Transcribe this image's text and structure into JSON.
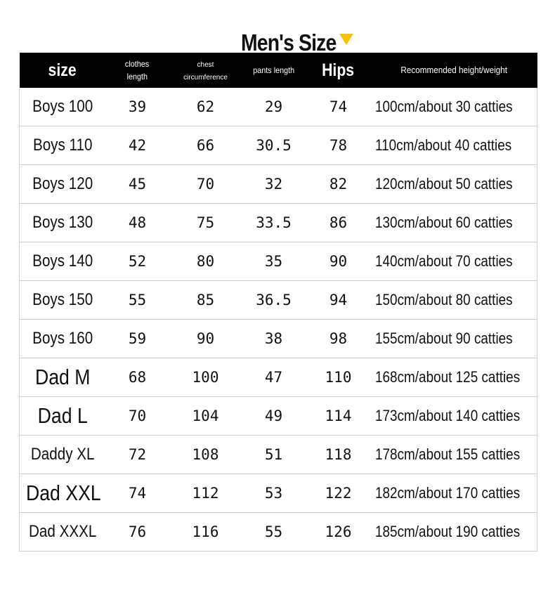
{
  "title": "Men's Size",
  "colors": {
    "header_bg": "#000000",
    "header_text": "#ffffff",
    "accent_arrow": "#f4c20d",
    "grid": "#cfcfcf"
  },
  "headers": {
    "size": "size",
    "clothes_length_1": "clothes",
    "clothes_length_2": "length",
    "chest_1": "chest",
    "chest_2": "circumference",
    "pants_length": "pants length",
    "hips": "Hips",
    "recommended": "Recommended height/weight"
  },
  "rows": [
    {
      "size": "Boys 100",
      "clothes_length": "39",
      "chest": "62",
      "pants_length": "29",
      "hips": "74",
      "recommended": "100cm/about 30 catties"
    },
    {
      "size": "Boys 110",
      "clothes_length": "42",
      "chest": "66",
      "pants_length": "30.5",
      "hips": "78",
      "recommended": "110cm/about 40 catties"
    },
    {
      "size": "Boys 120",
      "clothes_length": "45",
      "chest": "70",
      "pants_length": "32",
      "hips": "82",
      "recommended": "120cm/about 50 catties"
    },
    {
      "size": "Boys 130",
      "clothes_length": "48",
      "chest": "75",
      "pants_length": "33.5",
      "hips": "86",
      "recommended": "130cm/about 60 catties"
    },
    {
      "size": "Boys 140",
      "clothes_length": "52",
      "chest": "80",
      "pants_length": "35",
      "hips": "90",
      "recommended": "140cm/about 70 catties"
    },
    {
      "size": "Boys 150",
      "clothes_length": "55",
      "chest": "85",
      "pants_length": "36.5",
      "hips": "94",
      "recommended": "150cm/about 80 catties"
    },
    {
      "size": "Boys 160",
      "clothes_length": "59",
      "chest": "90",
      "pants_length": "38",
      "hips": "98",
      "recommended": "155cm/about 90 catties"
    },
    {
      "size": "Dad M",
      "clothes_length": "68",
      "chest": "100",
      "pants_length": "47",
      "hips": "110",
      "recommended": "168cm/about 125 catties"
    },
    {
      "size": "Dad L",
      "clothes_length": "70",
      "chest": "104",
      "pants_length": "49",
      "hips": "114",
      "recommended": "173cm/about 140 catties"
    },
    {
      "size": "Daddy XL",
      "clothes_length": "72",
      "chest": "108",
      "pants_length": "51",
      "hips": "118",
      "recommended": "178cm/about 155 catties"
    },
    {
      "size": "Dad XXL",
      "clothes_length": "74",
      "chest": "112",
      "pants_length": "53",
      "hips": "122",
      "recommended": "182cm/about 170 catties"
    },
    {
      "size": "Dad XXXL",
      "clothes_length": "76",
      "chest": "116",
      "pants_length": "55",
      "hips": "126",
      "recommended": "185cm/about 190 catties"
    }
  ]
}
